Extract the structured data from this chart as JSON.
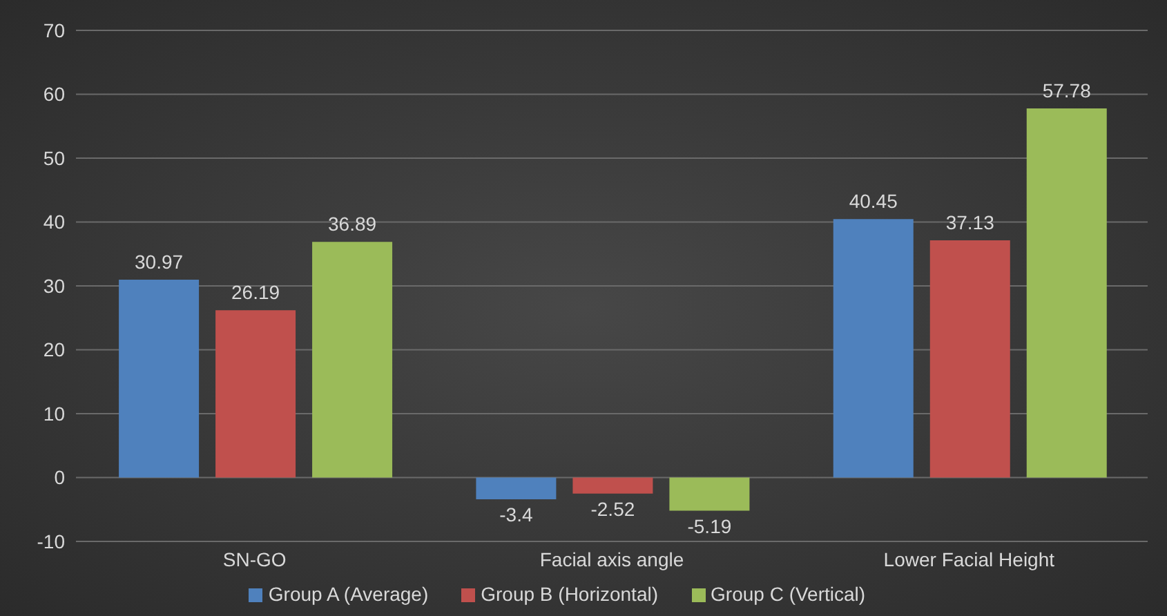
{
  "chart_data": {
    "type": "bar",
    "categories": [
      "SN-GO",
      "Facial axis angle",
      "Lower Facial Height"
    ],
    "series": [
      {
        "name": "Group A (Average)",
        "color": "#4f81bd",
        "values": [
          30.97,
          -3.4,
          40.45
        ]
      },
      {
        "name": "Group B (Horizontal)",
        "color": "#c0504d",
        "values": [
          26.19,
          -2.52,
          37.13
        ]
      },
      {
        "name": "Group C (Vertical)",
        "color": "#9bbb59",
        "values": [
          36.89,
          -5.19,
          57.78
        ]
      }
    ],
    "ylim": [
      -10,
      70
    ],
    "yticks": [
      -10,
      0,
      10,
      20,
      30,
      40,
      50,
      60,
      70
    ],
    "grid": "y",
    "legend": "bottom",
    "data_labels": true
  }
}
